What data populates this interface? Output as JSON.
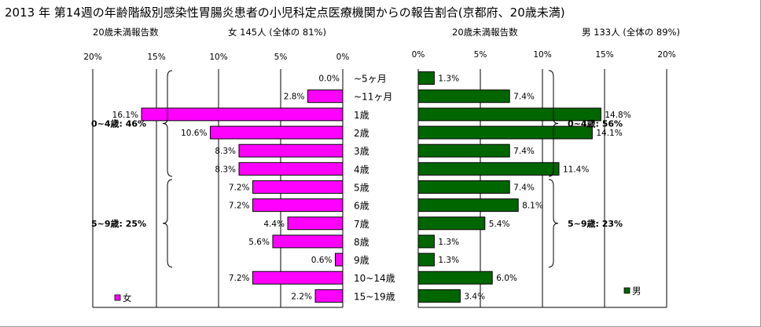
{
  "title": "2013 年 第14週の年齢階級別感染性胃腸炎患者の小児科定点医療機関からの報告割合(京都府、20歳未満)",
  "colors": {
    "female": "#ff00ff",
    "male": "#006600",
    "grid": "#000000",
    "frame": "#9a9a9a"
  },
  "chart_data": {
    "type": "bar",
    "orientation": "horizontal",
    "categories": [
      "~5ヶ月",
      "~11ヶ月",
      "1歳",
      "2歳",
      "3歳",
      "4歳",
      "5歳",
      "6歳",
      "7歳",
      "8歳",
      "9歳",
      "10~14歳",
      "15~19歳"
    ],
    "panels": [
      {
        "id": "female",
        "header_left": "20歳未満報告数",
        "header_right": "女  145人 (全体の  81%)",
        "legend": "女",
        "direction": "leftward",
        "xlim": [
          0,
          20
        ],
        "ticks": [
          "20%",
          "15%",
          "10%",
          "5%",
          "0%"
        ],
        "values": [
          0.0,
          2.8,
          16.1,
          10.6,
          8.3,
          8.3,
          7.2,
          7.2,
          4.4,
          5.6,
          0.6,
          7.2,
          2.2
        ],
        "labels": [
          "0.0%",
          "2.8%",
          "16.1%",
          "10.6%",
          "8.3%",
          "8.3%",
          "7.2%",
          "7.2%",
          "4.4%",
          "5.6%",
          "0.6%",
          "7.2%",
          "2.2%"
        ],
        "groups": [
          {
            "label": "0~4歳: 46%",
            "from": 0,
            "to": 5
          },
          {
            "label": "5~9歳: 25%",
            "from": 6,
            "to": 10
          }
        ]
      },
      {
        "id": "male",
        "header_left": "20歳未満報告数",
        "header_right": "男  133人 (全体の  89%)",
        "legend": "男",
        "direction": "rightward",
        "xlim": [
          0,
          20
        ],
        "ticks": [
          "0%",
          "5%",
          "10%",
          "15%",
          "20%"
        ],
        "values": [
          1.3,
          7.4,
          14.8,
          14.1,
          7.4,
          11.4,
          7.4,
          8.1,
          5.4,
          1.3,
          1.3,
          6.0,
          3.4
        ],
        "labels": [
          "1.3%",
          "7.4%",
          "14.8%",
          "14.1%",
          "7.4%",
          "11.4%",
          "7.4%",
          "8.1%",
          "5.4%",
          "1.3%",
          "1.3%",
          "6.0%",
          "3.4%"
        ],
        "groups": [
          {
            "label": "0~4歳: 56%",
            "from": 0,
            "to": 5
          },
          {
            "label": "5~9歳: 23%",
            "from": 6,
            "to": 10
          }
        ]
      }
    ]
  }
}
